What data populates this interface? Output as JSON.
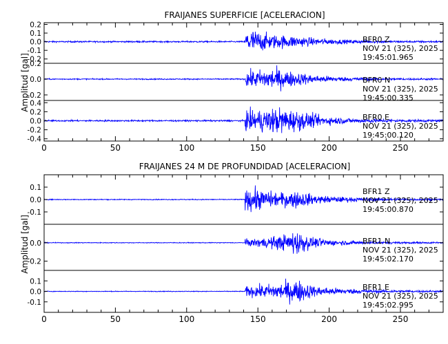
{
  "chart_data": [
    {
      "type": "line",
      "title": "FRAIJANES SUPERFICIE [ACELERACION]",
      "xlabel": "",
      "ylabel": "Amplitud [gal]",
      "xlim": [
        0,
        280
      ],
      "x_ticks": [
        "0",
        "50",
        "100",
        "150",
        "200",
        "250"
      ],
      "series_color": "#0000ff",
      "panels": [
        {
          "station": "BFR0",
          "component": "Z",
          "date": "NOV 21 (325), 2025",
          "time": "19:45:01.965",
          "ylim": [
            -0.25,
            0.22
          ],
          "y_ticks": [
            0.2,
            0.1,
            0.0,
            -0.1,
            -0.2
          ],
          "y_tick_labels": [
            "0.2",
            "0.1",
            "0.0",
            "-0.1",
            "-0.2"
          ],
          "onset_s": 141,
          "noise_amp": 0.012,
          "envelope": [
            [
              141,
              0.18
            ],
            [
              146,
              0.21
            ],
            [
              152,
              0.16
            ],
            [
              160,
              0.12
            ],
            [
              175,
              0.1
            ],
            [
              190,
              0.06
            ],
            [
              210,
              0.035
            ],
            [
              240,
              0.02
            ],
            [
              280,
              0.015
            ]
          ]
        },
        {
          "station": "BFR0",
          "component": "N",
          "date": "NOV 21 (325), 2025",
          "time": "19:45:00.335",
          "ylim": [
            -0.27,
            0.2
          ],
          "y_ticks": [
            0.2,
            0.0,
            -0.2
          ],
          "y_tick_labels": [
            "0.2",
            "0.0",
            "-0.2"
          ],
          "onset_s": 141,
          "noise_amp": 0.01,
          "envelope": [
            [
              141,
              0.14
            ],
            [
              150,
              0.16
            ],
            [
              160,
              0.2
            ],
            [
              175,
              0.13
            ],
            [
              190,
              0.07
            ],
            [
              210,
              0.04
            ],
            [
              240,
              0.02
            ],
            [
              280,
              0.015
            ]
          ]
        },
        {
          "station": "BFR0",
          "component": "E",
          "date": "NOV 21 (325), 2025",
          "time": "19:45:00.120",
          "ylim": [
            -0.45,
            0.45
          ],
          "y_ticks": [
            0.4,
            0.2,
            0.0,
            -0.2,
            -0.4
          ],
          "y_tick_labels": [
            "0.4",
            "0.2",
            "0.0",
            "-0.2",
            "-0.4"
          ],
          "onset_s": 141,
          "noise_amp": 0.025,
          "envelope": [
            [
              141,
              0.3
            ],
            [
              150,
              0.34
            ],
            [
              165,
              0.42
            ],
            [
              178,
              0.32
            ],
            [
              195,
              0.15
            ],
            [
              215,
              0.08
            ],
            [
              245,
              0.05
            ],
            [
              280,
              0.035
            ]
          ]
        }
      ]
    },
    {
      "type": "line",
      "title": "FRAIJANES 24 M DE PROFUNDIDAD [ACELERACION]",
      "xlabel": "",
      "ylabel": "Amplitud [gal]",
      "xlim": [
        0,
        280
      ],
      "x_ticks": [
        "0",
        "50",
        "100",
        "150",
        "200",
        "250"
      ],
      "series_color": "#0000ff",
      "panels": [
        {
          "station": "BFR1",
          "component": "Z",
          "date": "NOV 21 (325), 2025",
          "time": "19:45:00.870",
          "ylim": [
            -0.2,
            0.2
          ],
          "y_ticks": [
            0.1,
            0.0,
            -0.1
          ],
          "y_tick_labels": [
            "0.1",
            "0.0",
            "-0.1"
          ],
          "onset_s": 141,
          "noise_amp": 0.005,
          "envelope": [
            [
              141,
              0.1
            ],
            [
              146,
              0.15
            ],
            [
              152,
              0.11
            ],
            [
              165,
              0.08
            ],
            [
              178,
              0.1
            ],
            [
              190,
              0.05
            ],
            [
              210,
              0.03
            ],
            [
              240,
              0.015
            ],
            [
              280,
              0.01
            ]
          ]
        },
        {
          "station": "BFR1",
          "component": "N",
          "date": "NOV 21 (325), 2025",
          "time": "19:45:02.170",
          "ylim": [
            -0.3,
            0.2
          ],
          "y_ticks": [
            0.0,
            -0.2
          ],
          "y_tick_labels": [
            "0.0",
            "-0.2"
          ],
          "onset_s": 141,
          "noise_amp": 0.006,
          "envelope": [
            [
              141,
              0.05
            ],
            [
              155,
              0.08
            ],
            [
              168,
              0.12
            ],
            [
              177,
              0.2
            ],
            [
              188,
              0.08
            ],
            [
              205,
              0.04
            ],
            [
              230,
              0.02
            ],
            [
              280,
              0.012
            ]
          ]
        },
        {
          "station": "BFR1",
          "component": "E",
          "date": "NOV 21 (325), 2025",
          "time": "19:45:02.995",
          "ylim": [
            -0.2,
            0.2
          ],
          "y_ticks": [
            0.1,
            0.0,
            -0.1
          ],
          "y_tick_labels": [
            "0.1",
            "0.0",
            "-0.1"
          ],
          "onset_s": 141,
          "noise_amp": 0.005,
          "envelope": [
            [
              141,
              0.07
            ],
            [
              155,
              0.09
            ],
            [
              170,
              0.13
            ],
            [
              178,
              0.16
            ],
            [
              190,
              0.07
            ],
            [
              210,
              0.04
            ],
            [
              240,
              0.02
            ],
            [
              280,
              0.012
            ]
          ]
        }
      ]
    }
  ]
}
